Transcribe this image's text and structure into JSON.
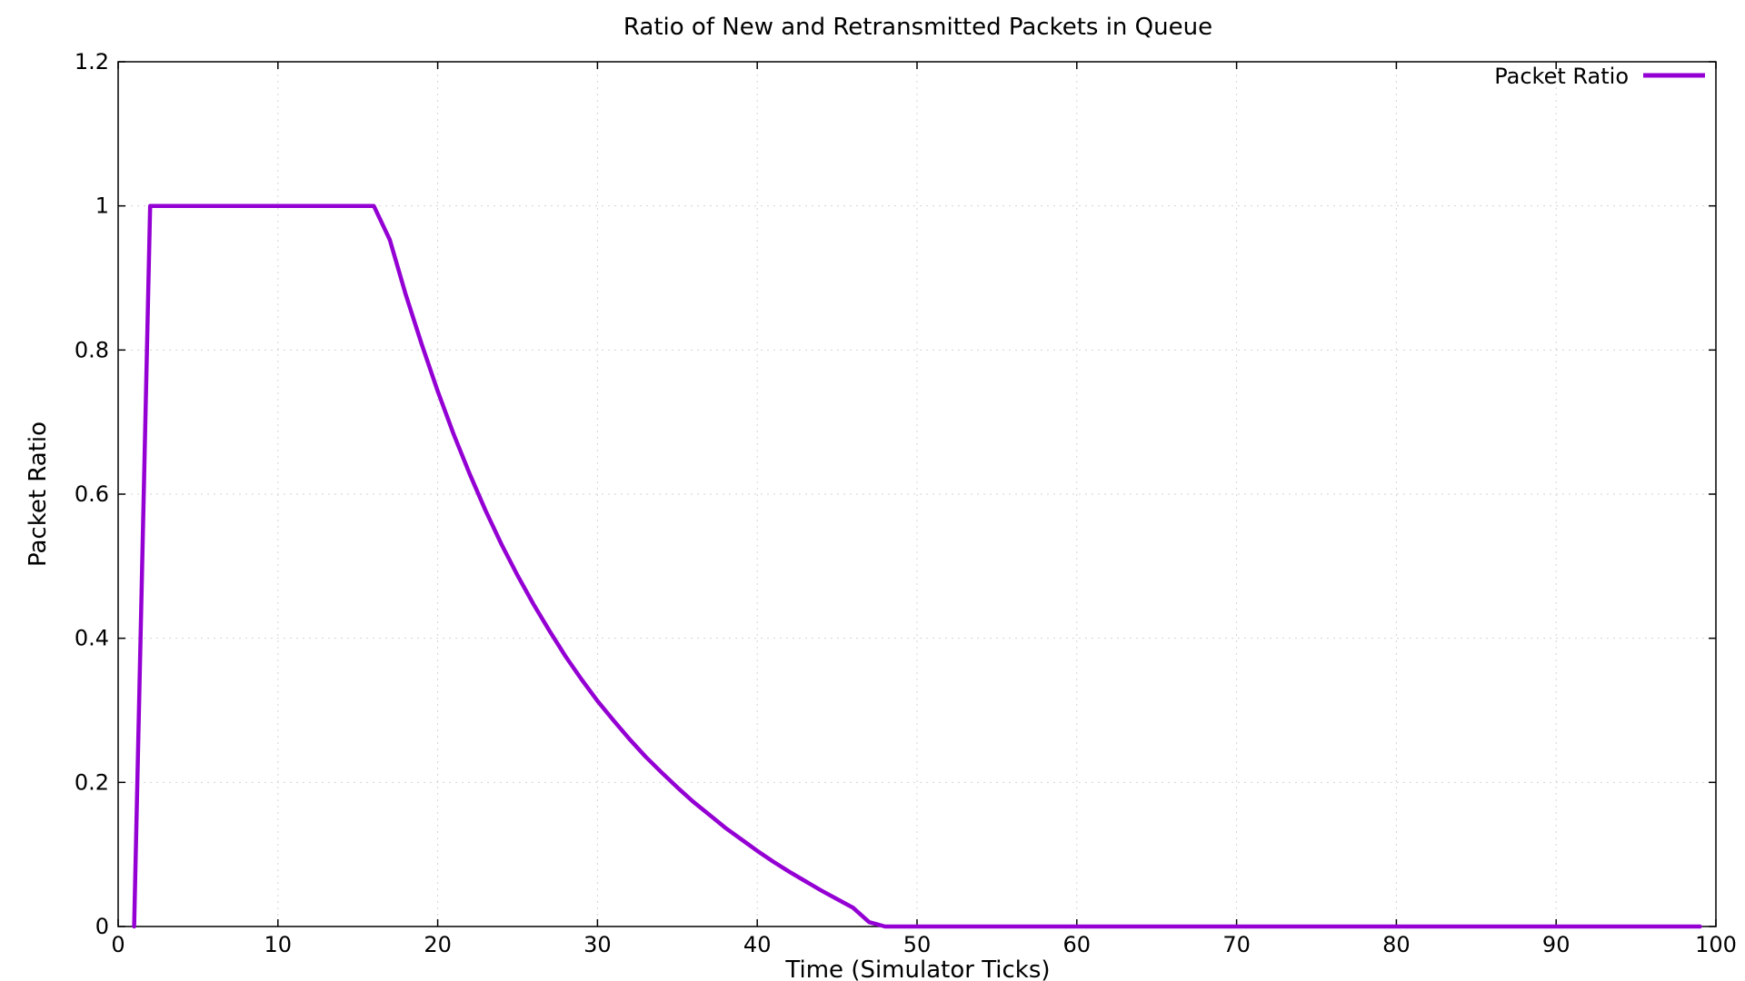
{
  "chart_data": {
    "type": "line",
    "title": "Ratio of New and Retransmitted Packets in Queue",
    "xlabel": "Time (Simulator Ticks)",
    "ylabel": "Packet Ratio",
    "xlim": [
      0,
      100
    ],
    "ylim": [
      0,
      1.2
    ],
    "xticks": [
      0,
      10,
      20,
      30,
      40,
      50,
      60,
      70,
      80,
      90,
      100
    ],
    "yticks": [
      0,
      0.2,
      0.4,
      0.6,
      0.8,
      1,
      1.2
    ],
    "grid": true,
    "legend_position": "top-right",
    "series": [
      {
        "name": "Packet Ratio",
        "color": "#9400d3",
        "x": [
          1,
          2,
          3,
          4,
          5,
          6,
          7,
          8,
          9,
          10,
          11,
          12,
          13,
          14,
          15,
          16,
          17,
          18,
          19,
          20,
          21,
          22,
          23,
          24,
          25,
          26,
          27,
          28,
          29,
          30,
          31,
          32,
          33,
          34,
          35,
          36,
          37,
          38,
          39,
          40,
          41,
          42,
          43,
          44,
          45,
          46,
          47,
          48,
          49,
          50,
          55,
          60,
          65,
          70,
          75,
          80,
          85,
          90,
          95,
          99
        ],
        "y": [
          0,
          1,
          1,
          1,
          1,
          1,
          1,
          1,
          1,
          1,
          1,
          1,
          1,
          1,
          1,
          1,
          0.953,
          0.877,
          0.808,
          0.743,
          0.683,
          0.628,
          0.577,
          0.53,
          0.487,
          0.447,
          0.41,
          0.375,
          0.343,
          0.313,
          0.286,
          0.26,
          0.236,
          0.214,
          0.193,
          0.173,
          0.155,
          0.137,
          0.121,
          0.105,
          0.09,
          0.076,
          0.063,
          0.05,
          0.038,
          0.026,
          0.006,
          0,
          0,
          0,
          0,
          0,
          0,
          0,
          0,
          0,
          0,
          0,
          0,
          0
        ]
      }
    ]
  }
}
